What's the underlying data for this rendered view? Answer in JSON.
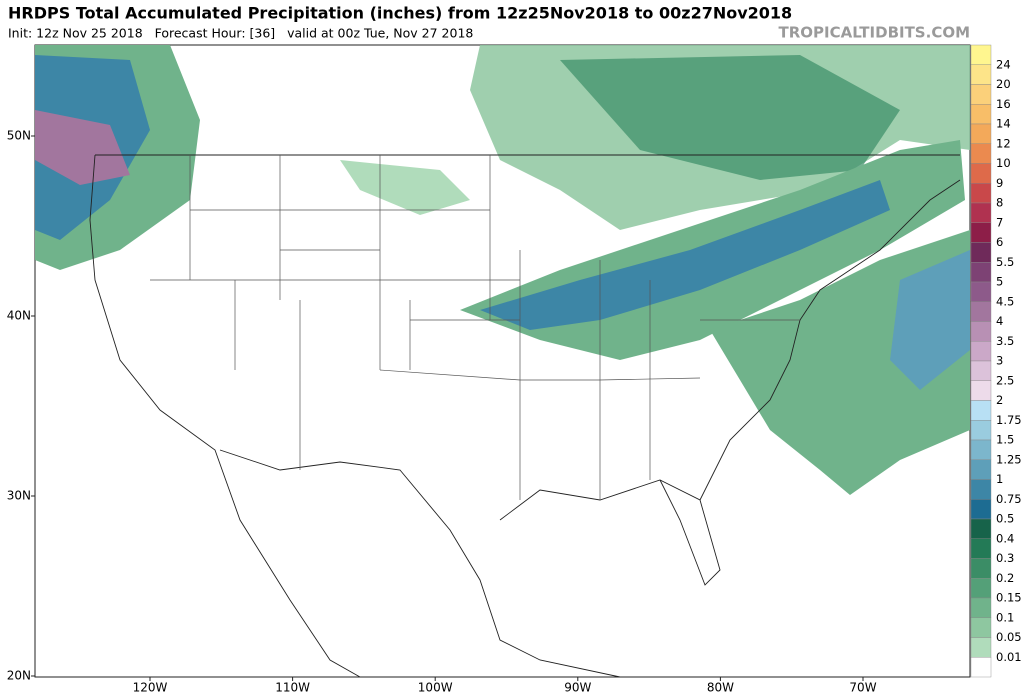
{
  "header": {
    "title": "HRDPS Total Accumulated Precipitation (inches) from 12z25Nov2018 to 00z27Nov2018",
    "subtitle": "Init: 12z Nov 25 2018   Forecast Hour: [36]   valid at 00z Tue, Nov 27 2018",
    "watermark": "TROPICALTIDBITS.COM"
  },
  "colorbar": {
    "labels": [
      "24",
      "20",
      "16",
      "14",
      "12",
      "10",
      "9",
      "8",
      "7",
      "6",
      "5.5",
      "5",
      "4.5",
      "4",
      "3.5",
      "3",
      "2.5",
      "2",
      "1.75",
      "1.5",
      "1.25",
      "1",
      "0.75",
      "0.5",
      "0.4",
      "0.3",
      "0.2",
      "0.15",
      "0.1",
      "0.05",
      "0.01"
    ],
    "colors": [
      "#fff68f",
      "#fde489",
      "#fbd07a",
      "#f8be68",
      "#f3a95a",
      "#eb8a4f",
      "#de6a4a",
      "#c9484a",
      "#b03250",
      "#8d1e48",
      "#6f2a5a",
      "#7d4274",
      "#8d5a8a",
      "#a2769e",
      "#b890b4",
      "#cba8c8",
      "#dcc2da",
      "#eddbea",
      "#b8e0f4",
      "#9accdf",
      "#7cb6cc",
      "#5e9fb9",
      "#3d86a6",
      "#1d6c92",
      "#17634a",
      "#237a56",
      "#3b8d66",
      "#54a078",
      "#70b38b",
      "#8ec7a0",
      "#b0dcbb",
      "#ffffff"
    ]
  },
  "lat_labels": [
    "50N",
    "40N",
    "30N",
    "20N"
  ],
  "lon_labels": [
    "120W",
    "110W",
    "100W",
    "90W",
    "80W",
    "70W"
  ]
}
